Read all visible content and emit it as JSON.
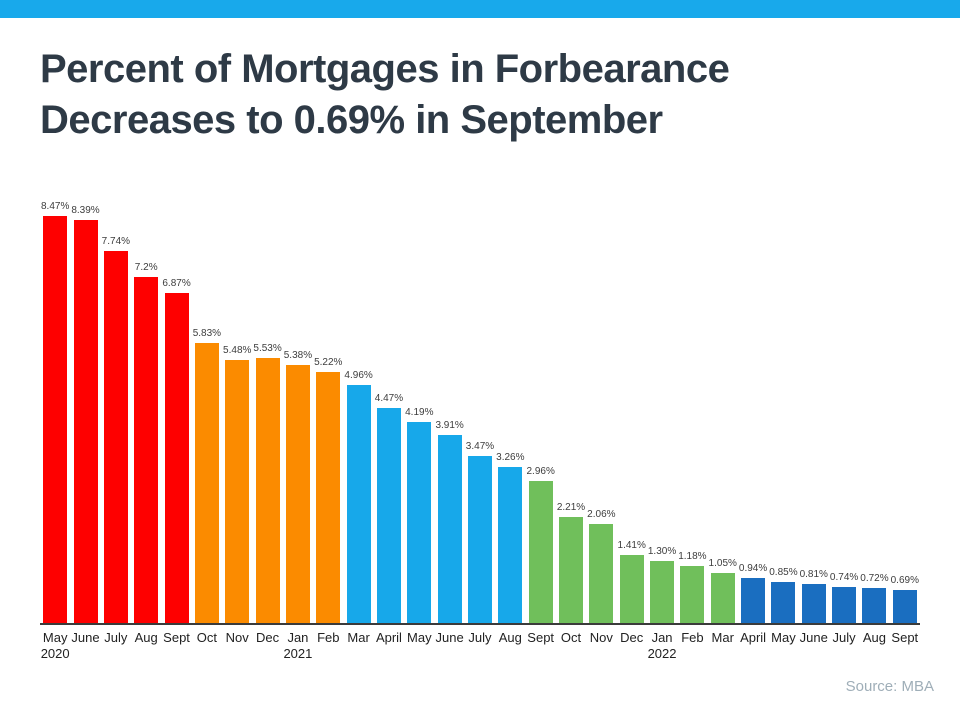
{
  "page": {
    "title_line1": "Percent of Mortgages in Forbearance",
    "title_line2": "Decreases to 0.69% in September",
    "source": "Source: MBA",
    "accent_color": "#18A9EB"
  },
  "chart_data": {
    "type": "bar",
    "title": "Percent of Mortgages in Forbearance Decreases to 0.69% in September",
    "xlabel": "",
    "ylabel": "",
    "ylim": [
      0,
      9
    ],
    "grid": false,
    "legend": false,
    "categories": [
      "May",
      "June",
      "July",
      "Aug",
      "Sept",
      "Oct",
      "Nov",
      "Dec",
      "Jan",
      "Feb",
      "Mar",
      "April",
      "May",
      "June",
      "July",
      "Aug",
      "Sept",
      "Oct",
      "Nov",
      "Dec",
      "Jan",
      "Feb",
      "Mar",
      "April",
      "May",
      "June",
      "July",
      "Aug",
      "Sept"
    ],
    "year_labels": [
      "2020",
      "",
      "",
      "",
      "",
      "",
      "",
      "",
      "2021",
      "",
      "",
      "",
      "",
      "",
      "",
      "",
      "",
      "",
      "",
      "",
      "2022",
      "",
      "",
      "",
      "",
      "",
      "",
      "",
      ""
    ],
    "values": [
      8.47,
      8.39,
      7.74,
      7.2,
      6.87,
      5.83,
      5.48,
      5.53,
      5.38,
      5.22,
      4.96,
      4.47,
      4.19,
      3.91,
      3.47,
      3.26,
      2.96,
      2.21,
      2.06,
      1.41,
      1.3,
      1.18,
      1.05,
      0.94,
      0.85,
      0.81,
      0.74,
      0.72,
      0.69
    ],
    "value_labels": [
      "8.47%",
      "8.39%",
      "7.74%",
      "7.2%",
      "6.87%",
      "5.83%",
      "5.48%",
      "5.53%",
      "5.38%",
      "5.22%",
      "4.96%",
      "4.47%",
      "4.19%",
      "3.91%",
      "3.47%",
      "3.26%",
      "2.96%",
      "2.21%",
      "2.06%",
      "1.41%",
      "1.30%",
      "1.18%",
      "1.05%",
      "0.94%",
      "0.85%",
      "0.81%",
      "0.74%",
      "0.72%",
      "0.69%"
    ],
    "bar_colors": [
      "#FE0000",
      "#FE0000",
      "#FE0000",
      "#FE0000",
      "#FE0000",
      "#FB8B00",
      "#FB8B00",
      "#FB8B00",
      "#FB8B00",
      "#FB8B00",
      "#17A8EA",
      "#17A8EA",
      "#17A8EA",
      "#17A8EA",
      "#17A8EA",
      "#17A8EA",
      "#70BF5B",
      "#70BF5B",
      "#70BF5B",
      "#70BF5B",
      "#70BF5B",
      "#70BF5B",
      "#70BF5B",
      "#1A6EC0",
      "#1A6EC0",
      "#1A6EC0",
      "#1A6EC0",
      "#1A6EC0",
      "#1A6EC0"
    ]
  }
}
